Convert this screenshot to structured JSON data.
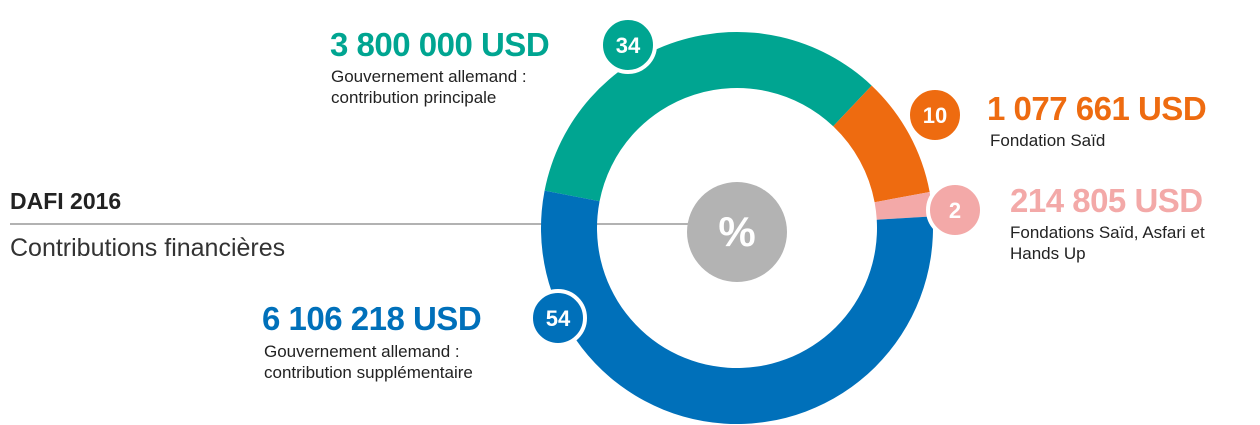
{
  "chart_data": {
    "type": "donut",
    "title": "DAFI 2016",
    "subtitle": "Contributions financières",
    "center_label": "%",
    "values": [
      34,
      10,
      2,
      54
    ],
    "colors": [
      "#00a591",
      "#ee6b10",
      "#f3a9a8",
      "#0070ba"
    ],
    "amounts": [
      "3 800 000 USD",
      "1 077 661 USD",
      "214 805 USD",
      "6 106 218 USD"
    ],
    "descriptions": [
      "Gouvernement allemand : contribution principale",
      "Fondation Saïd",
      "Fondations Saïd, Asfari et Hands Up",
      "Gouvernement allemand : contribution supplémentaire"
    ]
  }
}
